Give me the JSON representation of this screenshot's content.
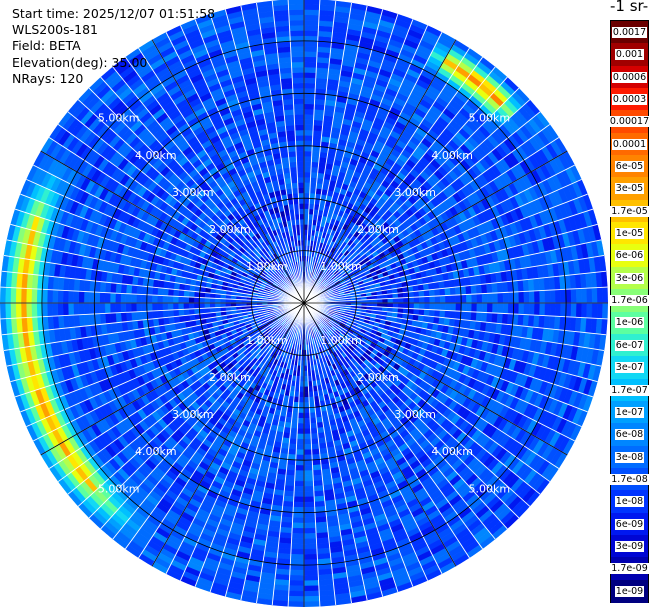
{
  "header": {
    "start_time": "Start time: 2025/12/07 01:51:58",
    "site": "WLS200s-181",
    "field": "Field: BETA",
    "elevation": "Elevation(deg): 35.00",
    "nrays": "NRays: 120"
  },
  "colorbar": {
    "title": "-1 sr-",
    "labels": [
      "0.0017",
      "0.001",
      "0.0006",
      "0.0003",
      "0.00017",
      "0.0001",
      "6e-05",
      "3e-05",
      "1.7e-05",
      "1e-05",
      "6e-06",
      "3e-06",
      "1.7e-06",
      "1e-06",
      "6e-07",
      "3e-07",
      "1.7e-07",
      "1e-07",
      "6e-08",
      "3e-08",
      "1.7e-08",
      "1e-08",
      "6e-09",
      "3e-09",
      "1.7e-09",
      "1e-09"
    ],
    "colors": [
      "#6a0000",
      "#a00000",
      "#d40000",
      "#ff1a00",
      "#ff4a00",
      "#ff6a00",
      "#ff8400",
      "#ffa000",
      "#ffc000",
      "#ffe600",
      "#e8ff10",
      "#b4ff4a",
      "#88ff78",
      "#5cffa0",
      "#30f0d0",
      "#12d8f4",
      "#00c0ff",
      "#00a0ff",
      "#0086ff",
      "#006cff",
      "#0050ff",
      "#0034ff",
      "#0018f0",
      "#0006d4",
      "#0000b0",
      "#000080"
    ]
  },
  "chart_data": {
    "type": "heatmap",
    "projection": "polar PPI",
    "field": "BETA",
    "elevation_deg": 35.0,
    "nrays": 120,
    "range_rings_km": [
      1,
      2,
      3,
      4,
      5
    ],
    "ring_labels": [
      "1.00km",
      "2.00km",
      "3.00km",
      "4.00km",
      "5.00km"
    ],
    "max_range_km": 5.8,
    "color_scale": "log",
    "value_range": [
      1e-09,
      0.0017
    ],
    "background_level": 1.7e-08,
    "features": [
      {
        "azimuth_deg_range": [
          215,
          300
        ],
        "range_km": [
          5.0,
          5.7
        ],
        "peak_value": 1.7e-05
      },
      {
        "azimuth_deg_range": [
          28,
          48
        ],
        "range_km": [
          5.1,
          5.6
        ],
        "peak_value": 3e-05
      }
    ]
  }
}
